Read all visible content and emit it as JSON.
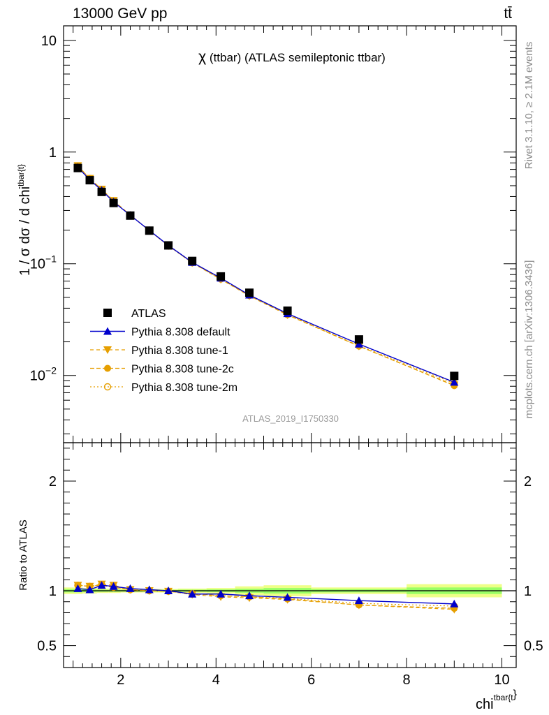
{
  "header": {
    "energy_label": "13000 GeV pp",
    "process_label": "tt̄"
  },
  "side_labels": {
    "rivet": "Rivet 3.1.10, ≥ 2.1M events",
    "site": "mcplots.cern.ch [arXiv:1306.3436]"
  },
  "watermark": "ATLAS_2019_I1750330",
  "colors": {
    "data": "#000000",
    "default": "#0000cc",
    "tunes": "#e69f00",
    "band_inner": "#99ff66",
    "band_outer": "#eeff88"
  },
  "chart_data": [
    {
      "type": "line",
      "panel": "main",
      "title": "χ (ttbar) (ATLAS semileptonic ttbar)",
      "ylabel": "1 / σ dσ / d chi^{tbar{t}}",
      "yscale": "log",
      "ylim": [
        0.0025,
        13.5
      ],
      "xlim": [
        0.8,
        10.3
      ],
      "y_ticks": [
        "10",
        "1",
        "10−1",
        "10−2"
      ],
      "legend": {
        "placement": "center-left"
      },
      "x": [
        1.1,
        1.35,
        1.6,
        1.85,
        2.2,
        2.6,
        3.0,
        3.5,
        4.1,
        4.7,
        5.5,
        7.0,
        9.0
      ],
      "series": [
        {
          "name": "ATLAS",
          "style": "data",
          "values": [
            0.72,
            0.56,
            0.44,
            0.35,
            0.27,
            0.198,
            0.146,
            0.106,
            0.077,
            0.055,
            0.038,
            0.021,
            0.0099
          ]
        },
        {
          "name": "Pythia 8.308 default",
          "style": "triangle-up",
          "values": [
            0.73,
            0.565,
            0.455,
            0.358,
            0.272,
            0.199,
            0.146,
            0.103,
            0.0745,
            0.0525,
            0.0358,
            0.0191,
            0.0087
          ]
        },
        {
          "name": "Pythia 8.308 tune-1",
          "style": "triangle-down",
          "values": [
            0.755,
            0.58,
            0.465,
            0.368,
            0.273,
            0.198,
            0.145,
            0.102,
            0.0725,
            0.0515,
            0.0348,
            0.0183,
            0.0082
          ]
        },
        {
          "name": "Pythia 8.308 tune-2c",
          "style": "filled-circle",
          "values": [
            0.75,
            0.58,
            0.46,
            0.36,
            0.274,
            0.199,
            0.146,
            0.103,
            0.073,
            0.052,
            0.035,
            0.0183,
            0.0081
          ]
        },
        {
          "name": "Pythia 8.308 tune-2m",
          "style": "open-circle",
          "values": [
            0.752,
            0.58,
            0.462,
            0.362,
            0.273,
            0.198,
            0.145,
            0.102,
            0.073,
            0.052,
            0.0352,
            0.0185,
            0.0085
          ]
        }
      ]
    },
    {
      "type": "line",
      "panel": "ratio",
      "ylabel": "Ratio to ATLAS",
      "xlabel": "chi^{tbar{t}}",
      "yscale": "linear",
      "ylim": [
        0.3,
        2.35
      ],
      "xlim": [
        0.8,
        10.3
      ],
      "y_ticks": [
        "0.5",
        "1",
        "2"
      ],
      "x_ticks": [
        "2",
        "4",
        "6",
        "8",
        "10"
      ],
      "x": [
        1.1,
        1.35,
        1.6,
        1.85,
        2.2,
        2.6,
        3.0,
        3.5,
        4.1,
        4.7,
        5.5,
        7.0,
        9.0
      ],
      "bin_edges": [
        0.8,
        1.2,
        1.5,
        1.75,
        2.0,
        2.4,
        2.8,
        3.2,
        3.8,
        4.4,
        5.0,
        6.0,
        8.0,
        10.0
      ],
      "band_inner": [
        0.015,
        0.012,
        0.01,
        0.01,
        0.008,
        0.008,
        0.008,
        0.01,
        0.012,
        0.018,
        0.025,
        0.015,
        0.03
      ],
      "band_outer": [
        0.03,
        0.025,
        0.02,
        0.02,
        0.016,
        0.016,
        0.016,
        0.02,
        0.025,
        0.04,
        0.05,
        0.03,
        0.06
      ],
      "series": [
        {
          "name": "Pythia 8.308 default",
          "style": "triangle-up",
          "values": [
            1.02,
            1.01,
            1.05,
            1.04,
            1.02,
            1.01,
            1.0,
            0.97,
            0.97,
            0.955,
            0.94,
            0.91,
            0.88
          ]
        },
        {
          "name": "Pythia 8.308 tune-1",
          "style": "triangle-down",
          "values": [
            1.05,
            1.04,
            1.06,
            1.05,
            1.01,
            1.0,
            0.995,
            0.965,
            0.945,
            0.935,
            0.92,
            0.87,
            0.83
          ]
        },
        {
          "name": "Pythia 8.308 tune-2c",
          "style": "filled-circle",
          "values": [
            1.05,
            1.04,
            1.05,
            1.03,
            1.01,
            1.0,
            0.995,
            0.975,
            0.955,
            0.945,
            0.925,
            0.87,
            0.84
          ]
        },
        {
          "name": "Pythia 8.308 tune-2m",
          "style": "open-circle",
          "values": [
            1.05,
            1.04,
            1.055,
            1.035,
            1.01,
            1.0,
            0.995,
            0.97,
            0.955,
            0.945,
            0.93,
            0.885,
            0.86
          ]
        }
      ]
    }
  ]
}
